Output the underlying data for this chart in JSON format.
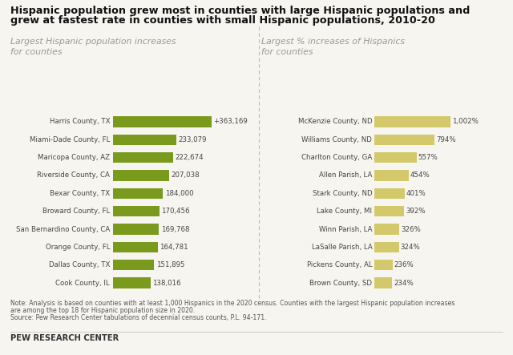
{
  "title_line1": "Hispanic population grew most in counties with large Hispanic populations and",
  "title_line2": "grew at fastest rate in counties with small Hispanic populations, 2010-20",
  "left_subtitle": "Largest Hispanic population increases\nfor counties",
  "right_subtitle": "Largest % increases of Hispanics\nfor counties",
  "left_labels": [
    "Harris County, TX",
    "Miami-Dade County, FL",
    "Maricopa County, AZ",
    "Riverside County, CA",
    "Bexar County, TX",
    "Broward County, FL",
    "San Bernardino County, CA",
    "Orange County, FL",
    "Dallas County, TX",
    "Cook County, IL"
  ],
  "left_values": [
    363169,
    233079,
    222674,
    207038,
    184000,
    170456,
    169768,
    164781,
    151895,
    138016
  ],
  "left_labels_display": [
    "+363,169",
    "233,079",
    "222,674",
    "207,038",
    "184,000",
    "170,456",
    "169,768",
    "164,781",
    "151,895",
    "138,016"
  ],
  "left_bar_color": "#7a9a1e",
  "right_labels": [
    "McKenzie County, ND",
    "Williams County, ND",
    "Charlton County, GA",
    "Allen Parish, LA",
    "Stark County, ND",
    "Lake County, MI",
    "Winn Parish, LA",
    "LaSalle Parish, LA",
    "Pickens County, AL",
    "Brown County, SD"
  ],
  "right_values": [
    1002,
    794,
    557,
    454,
    401,
    392,
    326,
    324,
    236,
    234
  ],
  "right_labels_display": [
    "1,002%",
    "794%",
    "557%",
    "454%",
    "401%",
    "392%",
    "326%",
    "324%",
    "236%",
    "234%"
  ],
  "right_bar_color": "#d4c96a",
  "note_line1": "Note: Analysis is based on counties with at least 1,000 Hispanics in the 2020 census. Counties with the largest Hispanic population increases",
  "note_line2": "are among the top 18 for Hispanic population size in 2020.",
  "note_line3": "Source: Pew Research Center tabulations of decennial census counts, P.L. 94-171.",
  "footer": "PEW RESEARCH CENTER",
  "background_color": "#f7f5f0"
}
